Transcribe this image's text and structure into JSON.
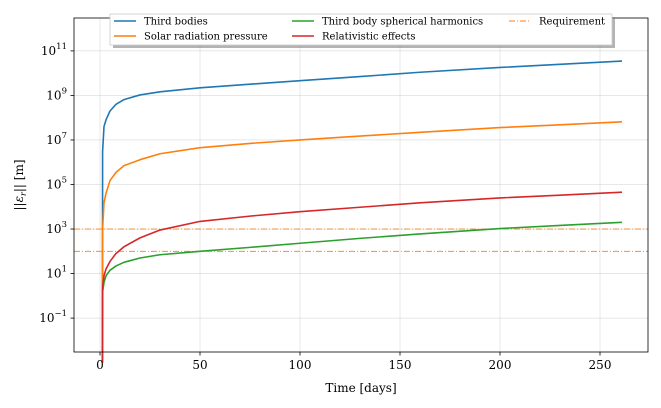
{
  "chart_data": {
    "type": "line",
    "xlabel": "Time [days]",
    "ylabel": "||ε_r|| [m]",
    "xscale": "linear",
    "yscale": "log",
    "xlim": [
      -13,
      274
    ],
    "ylim": [
      0.003,
      3000000000000.0
    ],
    "grid": true,
    "legend_position": "top",
    "x_ticks": [
      0,
      50,
      100,
      150,
      200,
      250
    ],
    "y_ticks": [
      {
        "exponent": -1,
        "value": 0.1
      },
      {
        "exponent": 1,
        "value": 10
      },
      {
        "exponent": 3,
        "value": 1000
      },
      {
        "exponent": 5,
        "value": 100000
      },
      {
        "exponent": 7,
        "value": 10000000
      },
      {
        "exponent": 9,
        "value": 1000000000
      },
      {
        "exponent": 11,
        "value": 100000000000
      }
    ],
    "series": [
      {
        "name": "Third bodies",
        "color": "#1f77b4",
        "points": [
          [
            1.2,
            0.001
          ],
          [
            1.3,
            3000000
          ],
          [
            2,
            40000000
          ],
          [
            3,
            80000000
          ],
          [
            5,
            200000000
          ],
          [
            8,
            400000000
          ],
          [
            12,
            650000000
          ],
          [
            20,
            1050000000
          ],
          [
            30,
            1450000000
          ],
          [
            50,
            2200000000
          ],
          [
            75,
            3200000000
          ],
          [
            100,
            4600000000
          ],
          [
            130,
            7000000000
          ],
          [
            160,
            11000000000
          ],
          [
            200,
            18000000000
          ],
          [
            230,
            25000000000
          ],
          [
            261,
            35000000000
          ]
        ]
      },
      {
        "name": "Solar radiation pressure",
        "color": "#ff7f0e",
        "points": [
          [
            1.2,
            0.001
          ],
          [
            1.3,
            1000
          ],
          [
            2,
            15000
          ],
          [
            3,
            40000
          ],
          [
            5,
            150000
          ],
          [
            8,
            350000
          ],
          [
            12,
            700000
          ],
          [
            20,
            1300000
          ],
          [
            30,
            2400000
          ],
          [
            50,
            4500000
          ],
          [
            75,
            7000000
          ],
          [
            100,
            10000000
          ],
          [
            130,
            15000000
          ],
          [
            160,
            22000000
          ],
          [
            200,
            36000000
          ],
          [
            230,
            48000000
          ],
          [
            261,
            65000000
          ]
        ]
      },
      {
        "name": "Third body spherical harmonics",
        "color": "#2ca02c",
        "points": [
          [
            1.2,
            0.001
          ],
          [
            1.3,
            1.5
          ],
          [
            2,
            4
          ],
          [
            3,
            8
          ],
          [
            5,
            14
          ],
          [
            8,
            22
          ],
          [
            12,
            32
          ],
          [
            20,
            50
          ],
          [
            30,
            70
          ],
          [
            50,
            100
          ],
          [
            75,
            150
          ],
          [
            100,
            230
          ],
          [
            130,
            380
          ],
          [
            160,
            600
          ],
          [
            200,
            1050
          ],
          [
            230,
            1450
          ],
          [
            261,
            2000
          ]
        ]
      },
      {
        "name": "Relativistic effects",
        "color": "#d62728",
        "points": [
          [
            1.2,
            0.001
          ],
          [
            1.3,
            2.5
          ],
          [
            2,
            8
          ],
          [
            3,
            16
          ],
          [
            5,
            35
          ],
          [
            8,
            80
          ],
          [
            12,
            160
          ],
          [
            20,
            400
          ],
          [
            30,
            900
          ],
          [
            50,
            2200
          ],
          [
            75,
            3800
          ],
          [
            100,
            6000
          ],
          [
            130,
            9500
          ],
          [
            160,
            15000
          ],
          [
            200,
            25000
          ],
          [
            230,
            33000
          ],
          [
            261,
            45000
          ]
        ]
      }
    ],
    "requirement": {
      "name": "Requirement",
      "color": "#ff7f0e",
      "values": [
        1000,
        100
      ]
    }
  }
}
